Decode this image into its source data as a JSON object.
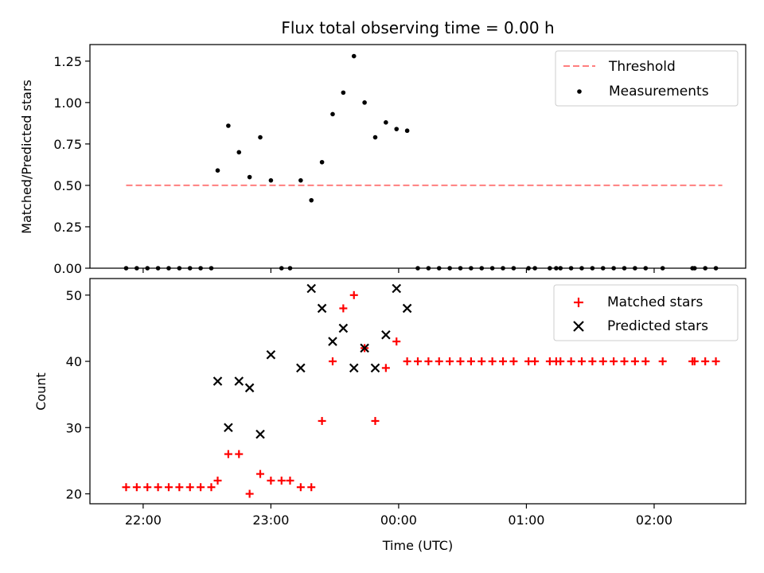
{
  "chart_data": [
    {
      "type": "scatter",
      "title": "Flux total observing time = 0.00 h",
      "ylabel": "Matched/Predicted stars",
      "ylim": [
        0,
        1.35
      ],
      "yticks": [
        "0.00",
        "0.25",
        "0.50",
        "0.75",
        "1.00",
        "1.25"
      ],
      "legend_position": "top-right",
      "threshold": {
        "name": "Threshold",
        "value": 0.5,
        "color": "#ff7f7f",
        "x_range": [
          "21:52",
          "02:32"
        ]
      },
      "series": [
        {
          "name": "Measurements",
          "color": "#000000",
          "points": [
            [
              "21:52",
              0
            ],
            [
              "21:57",
              0
            ],
            [
              "22:02",
              0
            ],
            [
              "22:07",
              0
            ],
            [
              "22:12",
              0
            ],
            [
              "22:17",
              0
            ],
            [
              "22:22",
              0
            ],
            [
              "22:27",
              0
            ],
            [
              "22:32",
              0
            ],
            [
              "22:35",
              0.59
            ],
            [
              "22:40",
              0.86
            ],
            [
              "22:45",
              0.7
            ],
            [
              "22:50",
              0.55
            ],
            [
              "22:55",
              0.79
            ],
            [
              "23:00",
              0.53
            ],
            [
              "23:05",
              0
            ],
            [
              "23:09",
              0
            ],
            [
              "23:14",
              0.53
            ],
            [
              "23:19",
              0.41
            ],
            [
              "23:24",
              0.64
            ],
            [
              "23:29",
              0.93
            ],
            [
              "23:34",
              1.06
            ],
            [
              "23:39",
              1.28
            ],
            [
              "23:44",
              1.0
            ],
            [
              "23:49",
              0.79
            ],
            [
              "23:54",
              0.88
            ],
            [
              "23:59",
              0.84
            ],
            [
              "00:04",
              0.83
            ],
            [
              "00:09",
              0
            ],
            [
              "00:14",
              0
            ],
            [
              "00:19",
              0
            ],
            [
              "00:24",
              0
            ],
            [
              "00:29",
              0
            ],
            [
              "00:34",
              0
            ],
            [
              "00:39",
              0
            ],
            [
              "00:44",
              0
            ],
            [
              "00:49",
              0
            ],
            [
              "00:54",
              0
            ],
            [
              "01:01",
              0
            ],
            [
              "01:04",
              0
            ],
            [
              "01:11",
              0
            ],
            [
              "01:14",
              0
            ],
            [
              "01:16",
              0
            ],
            [
              "01:21",
              0
            ],
            [
              "01:26",
              0
            ],
            [
              "01:31",
              0
            ],
            [
              "01:36",
              0
            ],
            [
              "01:41",
              0
            ],
            [
              "01:46",
              0
            ],
            [
              "01:51",
              0
            ],
            [
              "01:56",
              0
            ],
            [
              "02:04",
              0
            ],
            [
              "02:18",
              0
            ],
            [
              "02:19",
              0
            ],
            [
              "02:24",
              0
            ],
            [
              "02:29",
              0
            ]
          ]
        }
      ]
    },
    {
      "type": "scatter",
      "xlabel": "Time (UTC)",
      "ylabel": "Count",
      "ylim": [
        18.5,
        52.5
      ],
      "yticks": [
        "20",
        "30",
        "40",
        "50"
      ],
      "xticks": [
        "22:00",
        "23:00",
        "00:00",
        "01:00",
        "02:00"
      ],
      "xlim": [
        "21:35",
        "02:43"
      ],
      "legend_position": "top-right",
      "series": [
        {
          "name": "Matched stars",
          "marker": "plus",
          "color": "#ff0000",
          "points": [
            [
              "21:52",
              21
            ],
            [
              "21:57",
              21
            ],
            [
              "22:02",
              21
            ],
            [
              "22:07",
              21
            ],
            [
              "22:12",
              21
            ],
            [
              "22:17",
              21
            ],
            [
              "22:22",
              21
            ],
            [
              "22:27",
              21
            ],
            [
              "22:32",
              21
            ],
            [
              "22:35",
              22
            ],
            [
              "22:40",
              26
            ],
            [
              "22:45",
              26
            ],
            [
              "22:50",
              20
            ],
            [
              "22:55",
              23
            ],
            [
              "23:00",
              22
            ],
            [
              "23:05",
              22
            ],
            [
              "23:09",
              22
            ],
            [
              "23:14",
              21
            ],
            [
              "23:19",
              21
            ],
            [
              "23:24",
              31
            ],
            [
              "23:29",
              40
            ],
            [
              "23:34",
              48
            ],
            [
              "23:39",
              50
            ],
            [
              "23:44",
              42
            ],
            [
              "23:49",
              31
            ],
            [
              "23:54",
              39
            ],
            [
              "23:59",
              43
            ],
            [
              "00:04",
              40
            ],
            [
              "00:09",
              40
            ],
            [
              "00:14",
              40
            ],
            [
              "00:19",
              40
            ],
            [
              "00:24",
              40
            ],
            [
              "00:29",
              40
            ],
            [
              "00:34",
              40
            ],
            [
              "00:39",
              40
            ],
            [
              "00:44",
              40
            ],
            [
              "00:49",
              40
            ],
            [
              "00:54",
              40
            ],
            [
              "01:01",
              40
            ],
            [
              "01:04",
              40
            ],
            [
              "01:11",
              40
            ],
            [
              "01:14",
              40
            ],
            [
              "01:16",
              40
            ],
            [
              "01:21",
              40
            ],
            [
              "01:26",
              40
            ],
            [
              "01:31",
              40
            ],
            [
              "01:36",
              40
            ],
            [
              "01:41",
              40
            ],
            [
              "01:46",
              40
            ],
            [
              "01:51",
              40
            ],
            [
              "01:56",
              40
            ],
            [
              "02:04",
              40
            ],
            [
              "02:18",
              40
            ],
            [
              "02:19",
              40
            ],
            [
              "02:24",
              40
            ],
            [
              "02:29",
              40
            ]
          ]
        },
        {
          "name": "Predicted stars",
          "marker": "x",
          "color": "#000000",
          "points": [
            [
              "22:35",
              37
            ],
            [
              "22:40",
              30
            ],
            [
              "22:45",
              37
            ],
            [
              "22:50",
              36
            ],
            [
              "22:55",
              29
            ],
            [
              "23:00",
              41
            ],
            [
              "23:14",
              39
            ],
            [
              "23:19",
              51
            ],
            [
              "23:24",
              48
            ],
            [
              "23:29",
              43
            ],
            [
              "23:34",
              45
            ],
            [
              "23:39",
              39
            ],
            [
              "23:44",
              42
            ],
            [
              "23:49",
              39
            ],
            [
              "23:54",
              44
            ],
            [
              "23:59",
              51
            ],
            [
              "00:04",
              48
            ]
          ]
        }
      ]
    }
  ]
}
